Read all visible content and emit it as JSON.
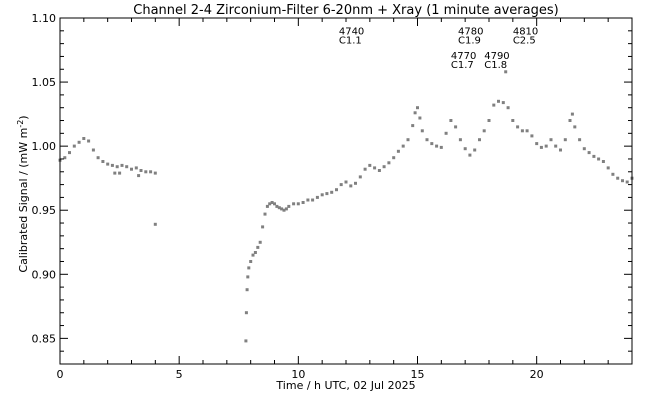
{
  "chart_data": {
    "type": "scatter",
    "title": "Channel 2-4   Zirconium-Filter   6-20nm + Xray   (1 minute averages)",
    "xlabel": "Time / h UTC, 02 Jul 2025",
    "ylabel": "Calibrated Signal / (mW m",
    "ylabel_sup": "-2",
    "ylabel_end": ")",
    "xlim": [
      0,
      24
    ],
    "ylim": [
      0.83,
      1.1
    ],
    "xticks": [
      0,
      5,
      10,
      15,
      20
    ],
    "xtick_labels": [
      "0",
      "5",
      "10",
      "15",
      "20"
    ],
    "yticks": [
      0.85,
      0.9,
      0.95,
      1.0,
      1.05,
      1.1
    ],
    "ytick_labels": [
      "0.85",
      "0.90",
      "0.95",
      "1.00",
      "1.05",
      "1.10"
    ],
    "marker_color": "#808080",
    "annotations": [
      {
        "time": 11.7,
        "y": 1.087,
        "id": "4740",
        "class": "C1.1"
      },
      {
        "time": 16.7,
        "y": 1.087,
        "id": "4780",
        "class": "C1.9"
      },
      {
        "time": 19.0,
        "y": 1.087,
        "id": "4810",
        "class": "C2.5"
      },
      {
        "time": 16.4,
        "y": 1.068,
        "id": "4770",
        "class": "C1.7"
      },
      {
        "time": 17.8,
        "y": 1.068,
        "id": "4790",
        "class": "C1.8"
      }
    ],
    "series": [
      {
        "values": [
          [
            0.0,
            0.989
          ],
          [
            0.2,
            0.991
          ],
          [
            0.4,
            0.995
          ],
          [
            0.6,
            1.0
          ],
          [
            0.8,
            1.003
          ],
          [
            1.0,
            1.006
          ],
          [
            1.2,
            1.004
          ],
          [
            1.4,
            0.997
          ],
          [
            1.6,
            0.991
          ],
          [
            1.8,
            0.988
          ],
          [
            2.0,
            0.986
          ],
          [
            2.2,
            0.985
          ],
          [
            2.4,
            0.984
          ],
          [
            2.6,
            0.985
          ],
          [
            2.8,
            0.984
          ],
          [
            3.0,
            0.982
          ],
          [
            3.2,
            0.983
          ],
          [
            3.4,
            0.981
          ],
          [
            3.6,
            0.98
          ],
          [
            3.8,
            0.98
          ],
          [
            4.0,
            0.979
          ],
          [
            2.3,
            0.979
          ],
          [
            2.5,
            0.979
          ],
          [
            3.3,
            0.977
          ],
          [
            4.0,
            0.939
          ],
          [
            7.8,
            0.848
          ],
          [
            7.82,
            0.87
          ],
          [
            7.85,
            0.888
          ],
          [
            7.88,
            0.898
          ],
          [
            7.92,
            0.905
          ],
          [
            8.0,
            0.91
          ],
          [
            8.1,
            0.915
          ],
          [
            8.2,
            0.917
          ],
          [
            8.3,
            0.921
          ],
          [
            8.4,
            0.925
          ],
          [
            8.5,
            0.937
          ],
          [
            8.6,
            0.947
          ],
          [
            8.7,
            0.953
          ],
          [
            8.8,
            0.955
          ],
          [
            8.9,
            0.956
          ],
          [
            9.0,
            0.955
          ],
          [
            9.1,
            0.953
          ],
          [
            9.2,
            0.952
          ],
          [
            9.3,
            0.951
          ],
          [
            9.4,
            0.95
          ],
          [
            9.5,
            0.951
          ],
          [
            9.6,
            0.953
          ],
          [
            9.8,
            0.955
          ],
          [
            10.0,
            0.955
          ],
          [
            10.2,
            0.956
          ],
          [
            10.4,
            0.958
          ],
          [
            10.6,
            0.958
          ],
          [
            10.8,
            0.96
          ],
          [
            11.0,
            0.962
          ],
          [
            11.2,
            0.963
          ],
          [
            11.4,
            0.964
          ],
          [
            11.6,
            0.966
          ],
          [
            11.8,
            0.97
          ],
          [
            12.0,
            0.972
          ],
          [
            12.2,
            0.969
          ],
          [
            12.4,
            0.971
          ],
          [
            12.6,
            0.976
          ],
          [
            12.8,
            0.982
          ],
          [
            13.0,
            0.985
          ],
          [
            13.2,
            0.983
          ],
          [
            13.4,
            0.981
          ],
          [
            13.6,
            0.984
          ],
          [
            13.8,
            0.987
          ],
          [
            14.0,
            0.991
          ],
          [
            14.2,
            0.996
          ],
          [
            14.4,
            1.0
          ],
          [
            14.6,
            1.005
          ],
          [
            14.8,
            1.016
          ],
          [
            14.9,
            1.026
          ],
          [
            15.0,
            1.03
          ],
          [
            15.1,
            1.022
          ],
          [
            15.2,
            1.012
          ],
          [
            15.4,
            1.005
          ],
          [
            15.6,
            1.002
          ],
          [
            15.8,
            1.0
          ],
          [
            16.0,
            0.999
          ],
          [
            16.2,
            1.01
          ],
          [
            16.4,
            1.02
          ],
          [
            16.6,
            1.015
          ],
          [
            16.8,
            1.005
          ],
          [
            17.0,
            0.998
          ],
          [
            17.2,
            0.993
          ],
          [
            17.4,
            0.997
          ],
          [
            17.6,
            1.005
          ],
          [
            17.8,
            1.012
          ],
          [
            18.0,
            1.02
          ],
          [
            18.2,
            1.032
          ],
          [
            18.4,
            1.035
          ],
          [
            18.6,
            1.034
          ],
          [
            18.7,
            1.058
          ],
          [
            18.8,
            1.03
          ],
          [
            19.0,
            1.02
          ],
          [
            19.2,
            1.015
          ],
          [
            19.4,
            1.012
          ],
          [
            19.6,
            1.012
          ],
          [
            19.8,
            1.008
          ],
          [
            20.0,
            1.002
          ],
          [
            20.2,
            0.999
          ],
          [
            20.4,
            1.0
          ],
          [
            20.6,
            1.005
          ],
          [
            20.8,
            1.0
          ],
          [
            21.0,
            0.997
          ],
          [
            21.2,
            1.005
          ],
          [
            21.4,
            1.02
          ],
          [
            21.5,
            1.025
          ],
          [
            21.6,
            1.015
          ],
          [
            21.8,
            1.005
          ],
          [
            22.0,
            0.998
          ],
          [
            22.2,
            0.995
          ],
          [
            22.4,
            0.992
          ],
          [
            22.6,
            0.99
          ],
          [
            22.8,
            0.988
          ],
          [
            23.0,
            0.983
          ],
          [
            23.2,
            0.978
          ],
          [
            23.4,
            0.975
          ],
          [
            23.6,
            0.973
          ],
          [
            23.8,
            0.972
          ],
          [
            24.0,
            0.975
          ]
        ]
      }
    ]
  }
}
